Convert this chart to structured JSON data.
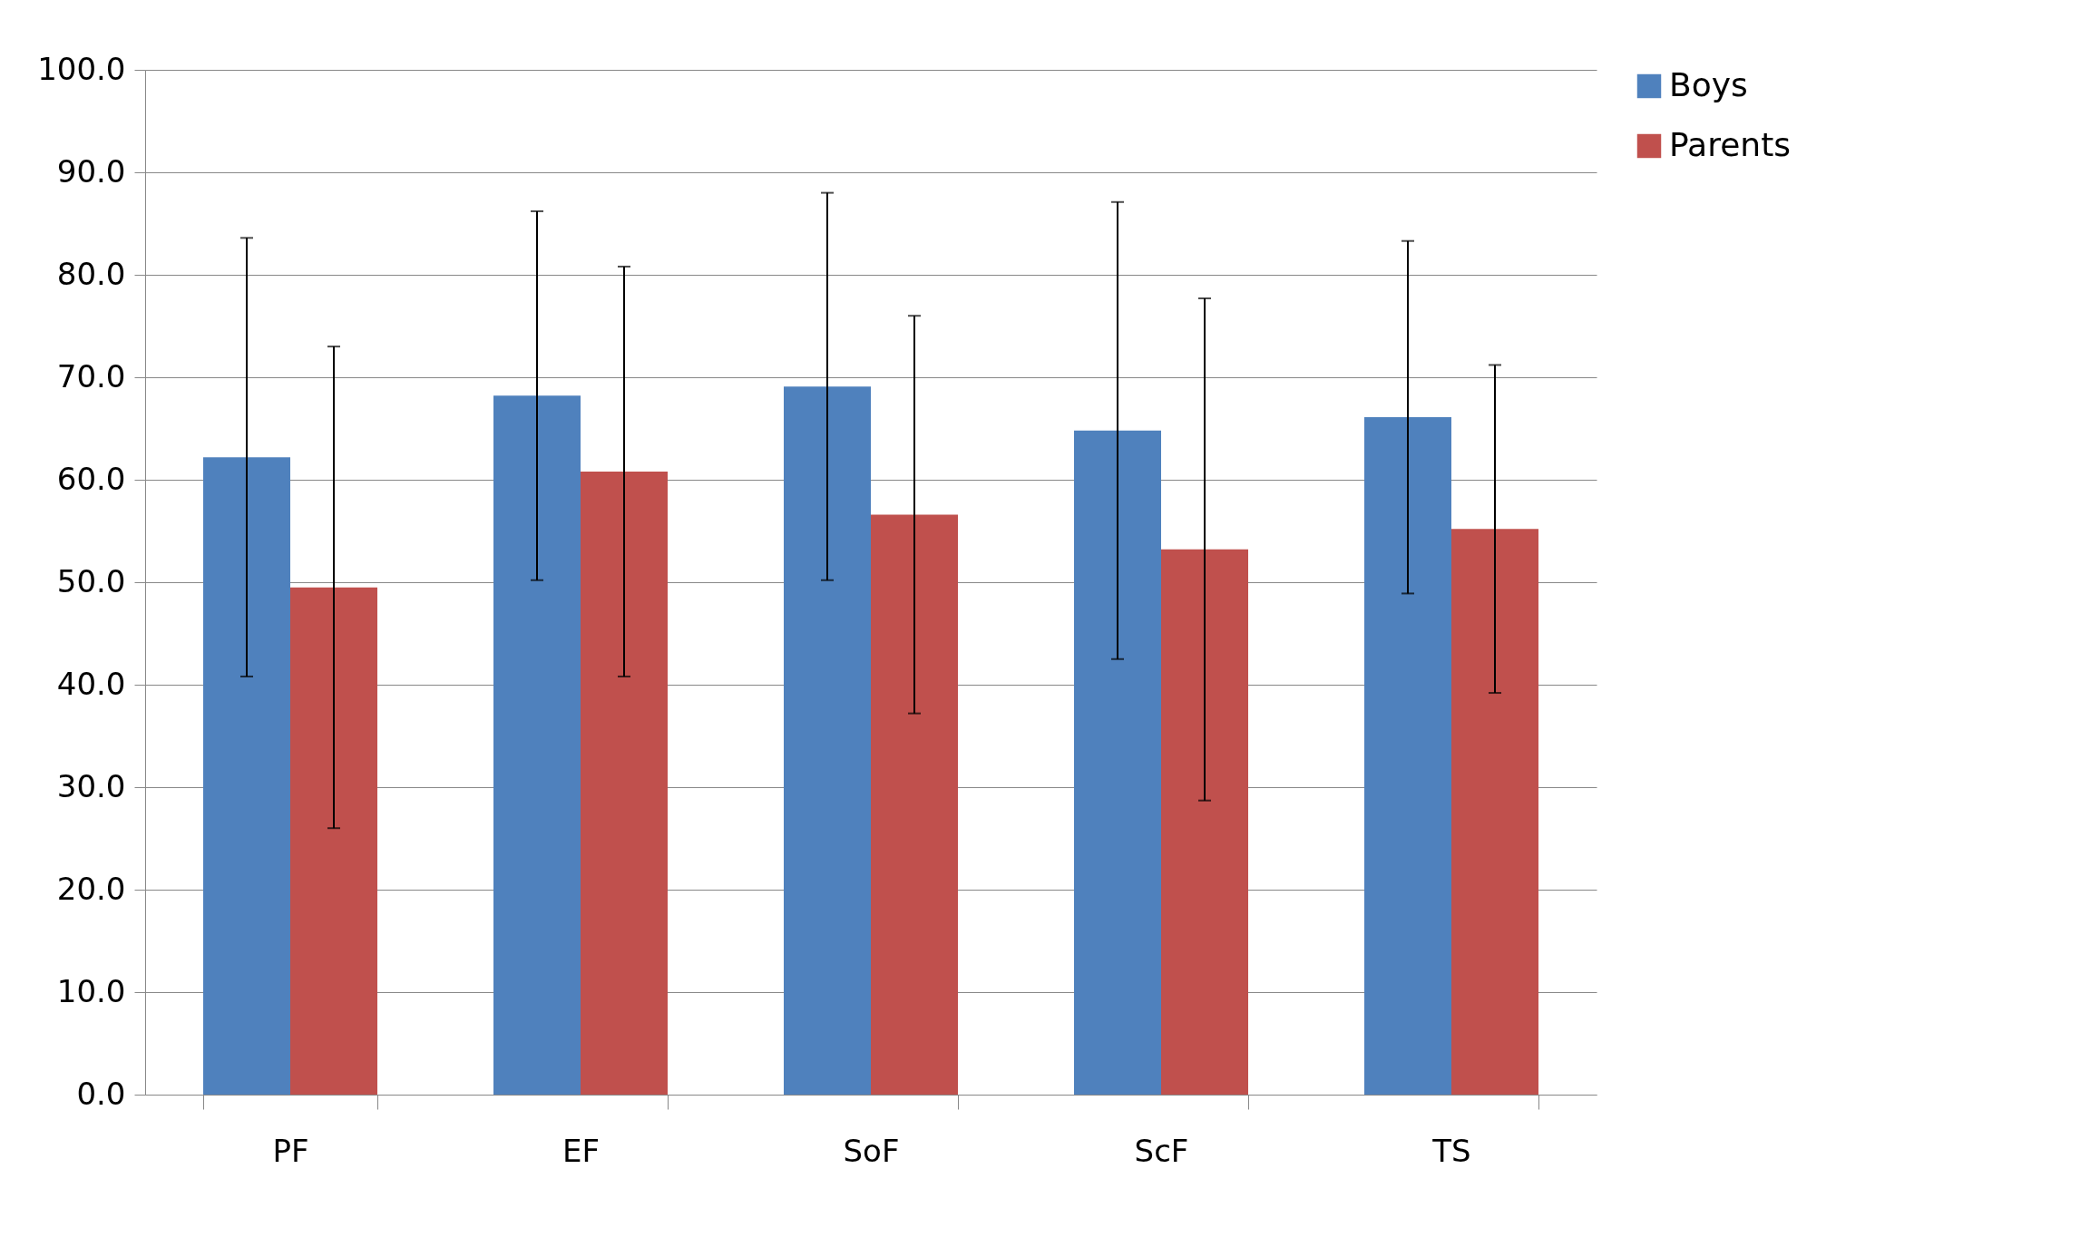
{
  "chart_data": {
    "type": "bar",
    "categories": [
      "PF",
      "EF",
      "SoF",
      "ScF",
      "TS"
    ],
    "series": [
      {
        "name": "Boys",
        "color": "#4f81bd",
        "values": [
          62.2,
          68.2,
          69.1,
          64.8,
          66.1
        ],
        "errors": [
          21.4,
          18.0,
          18.9,
          22.3,
          17.2
        ]
      },
      {
        "name": "Parents",
        "color": "#c0504d",
        "values": [
          49.5,
          60.8,
          56.6,
          53.2,
          55.2
        ],
        "errors": [
          23.5,
          20.0,
          19.4,
          24.5,
          16.0
        ]
      }
    ],
    "ylim": [
      0,
      100
    ],
    "yticks": [
      {
        "value": 0,
        "label": "0.0"
      },
      {
        "value": 10,
        "label": "10.0"
      },
      {
        "value": 20,
        "label": "20.0"
      },
      {
        "value": 30,
        "label": "30.0"
      },
      {
        "value": 40,
        "label": "40.0"
      },
      {
        "value": 50,
        "label": "50.0"
      },
      {
        "value": 60,
        "label": "60.0"
      },
      {
        "value": 70,
        "label": "70.0"
      },
      {
        "value": 80,
        "label": "80.0"
      },
      {
        "value": 90,
        "label": "90.0"
      },
      {
        "value": 100,
        "label": "100.0"
      }
    ],
    "grid": "y",
    "legend": "right"
  }
}
